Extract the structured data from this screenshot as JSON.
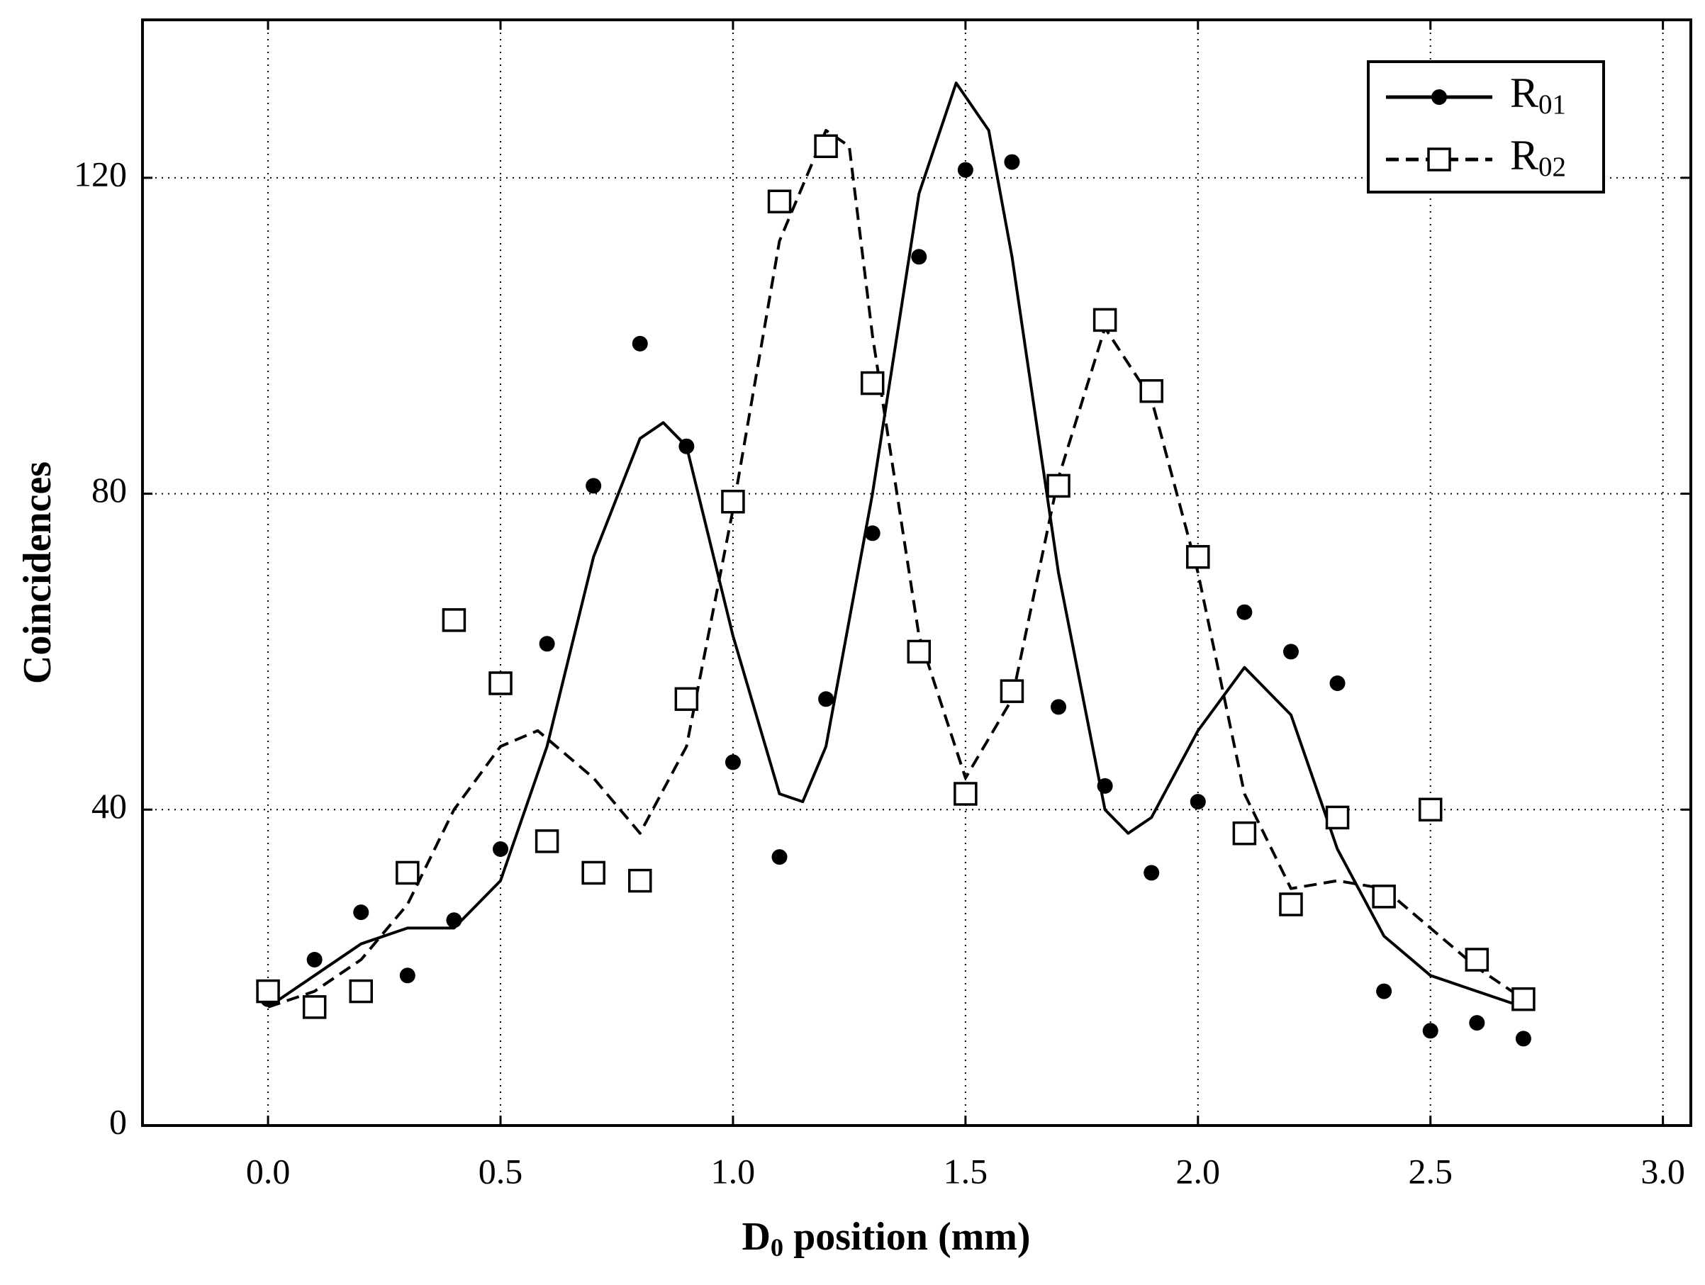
{
  "chart_data": {
    "type": "scatter",
    "x_label": "D0 position (mm)",
    "y_label": "Coincidences",
    "xlim": [
      -0.27,
      3.06
    ],
    "ylim": [
      0,
      140
    ],
    "xticks": [
      {
        "value": 0,
        "label": "0.0"
      },
      0.5,
      {
        "value": 1,
        "label": "1.0"
      },
      1.5,
      {
        "value": 2,
        "label": "2.0"
      },
      2.5,
      {
        "value": 3,
        "label": "3.0"
      }
    ],
    "yticks": [
      0,
      40,
      80,
      120
    ],
    "grid": true,
    "legend": "upper right",
    "x": [
      0,
      0.1,
      0.2,
      0.3,
      0.4,
      0.5,
      0.6,
      0.7,
      0.8,
      0.9,
      1,
      1.1,
      1.2,
      1.3,
      1.4,
      1.5,
      1.6,
      1.7,
      1.8,
      1.9,
      2,
      2.1,
      2.2,
      2.3,
      2.4,
      2.5,
      2.6,
      2.7
    ],
    "series": [
      {
        "name": "R01",
        "color": "#000000",
        "marker": "circle",
        "line": "solid",
        "values": [
          16,
          21,
          27,
          19,
          26,
          35,
          61,
          81,
          99,
          86,
          46,
          34,
          54,
          75,
          110,
          121,
          122,
          53,
          43,
          32,
          41,
          65,
          60,
          56,
          17,
          12,
          13,
          11
        ],
        "fit": {
          "x": [
            0,
            0.1,
            0.2,
            0.3,
            0.4,
            0.5,
            0.6,
            0.7,
            0.8,
            0.85,
            0.9,
            1,
            1.1,
            1.15,
            1.2,
            1.3,
            1.4,
            1.48,
            1.55,
            1.6,
            1.7,
            1.8,
            1.85,
            1.9,
            2,
            2.1,
            2.2,
            2.3,
            2.4,
            2.5,
            2.6,
            2.7
          ],
          "values": [
            15,
            19,
            23,
            25,
            25,
            31,
            48,
            72,
            87,
            89,
            86,
            62,
            42,
            41,
            48,
            80,
            118,
            132,
            126,
            110,
            70,
            40,
            37,
            39,
            50,
            58,
            52,
            35,
            24,
            19,
            17,
            15
          ]
        }
      },
      {
        "name": "R02",
        "color": "#000000",
        "marker": "square",
        "line": "dashed",
        "values": [
          17,
          15,
          17,
          32,
          64,
          56,
          36,
          32,
          31,
          54,
          79,
          117,
          124,
          94,
          60,
          42,
          55,
          81,
          102,
          93,
          72,
          37,
          28,
          39,
          29,
          40,
          21,
          16
        ],
        "fit": {
          "x": [
            0,
            0.1,
            0.2,
            0.3,
            0.4,
            0.5,
            0.58,
            0.7,
            0.8,
            0.9,
            1,
            1.1,
            1.2,
            1.25,
            1.3,
            1.4,
            1.5,
            1.6,
            1.7,
            1.8,
            1.9,
            2,
            2.1,
            2.2,
            2.3,
            2.4,
            2.5,
            2.6,
            2.7
          ],
          "values": [
            15,
            17,
            21,
            28,
            40,
            48,
            50,
            44,
            37,
            48,
            78,
            112,
            126,
            124,
            100,
            62,
            44,
            54,
            82,
            101,
            92,
            70,
            42,
            30,
            31,
            30,
            25,
            20,
            16
          ]
        }
      }
    ]
  }
}
